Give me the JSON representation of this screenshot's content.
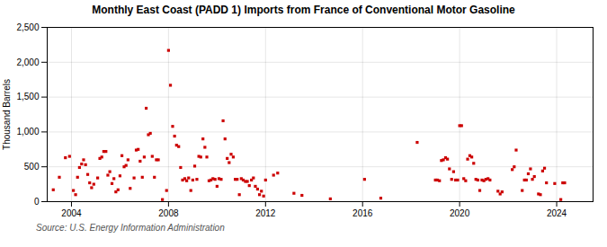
{
  "chart_data": {
    "type": "scatter",
    "title": "Monthly East Coast (PADD 1) Imports from France of Conventional Motor Gasoline",
    "ylabel": "Thousand Barrels",
    "annotations": [
      "Source: U.S. Energy Information Administration"
    ],
    "color": "#cc0000",
    "marker": "square",
    "grid": true,
    "xlim": [
      2003.0,
      2025.5
    ],
    "xticks": [
      2004,
      2008,
      2012,
      2016,
      2020,
      2024
    ],
    "ylim": [
      0,
      2500
    ],
    "yticks": [
      0,
      500,
      {
        "value": 1000,
        "label": "1,000"
      },
      {
        "value": 1500,
        "label": "1,500"
      },
      {
        "value": 2000,
        "label": "2,000"
      },
      {
        "value": 2500,
        "label": "2,500"
      }
    ],
    "x": [
      2003.25,
      2003.5,
      2003.75,
      2003.92,
      2004.08,
      2004.17,
      2004.25,
      2004.33,
      2004.42,
      2004.5,
      2004.58,
      2004.67,
      2004.75,
      2004.83,
      2004.92,
      2005.08,
      2005.17,
      2005.25,
      2005.33,
      2005.42,
      2005.5,
      2005.58,
      2005.67,
      2005.75,
      2005.83,
      2005.92,
      2006.0,
      2006.08,
      2006.17,
      2006.25,
      2006.33,
      2006.42,
      2006.58,
      2006.67,
      2006.75,
      2006.83,
      2006.92,
      2007.0,
      2007.08,
      2007.17,
      2007.25,
      2007.33,
      2007.42,
      2007.5,
      2007.58,
      2007.75,
      2007.92,
      2008.0,
      2008.08,
      2008.17,
      2008.25,
      2008.33,
      2008.42,
      2008.5,
      2008.58,
      2008.67,
      2008.75,
      2008.83,
      2008.92,
      2009.0,
      2009.08,
      2009.17,
      2009.25,
      2009.33,
      2009.42,
      2009.5,
      2009.58,
      2009.67,
      2009.75,
      2009.83,
      2009.92,
      2010.0,
      2010.08,
      2010.17,
      2010.25,
      2010.33,
      2010.42,
      2010.5,
      2010.58,
      2010.67,
      2010.75,
      2010.83,
      2010.92,
      2011.0,
      2011.08,
      2011.17,
      2011.25,
      2011.33,
      2011.42,
      2011.5,
      2011.58,
      2011.67,
      2011.75,
      2011.83,
      2011.92,
      2012.0,
      2012.33,
      2012.5,
      2013.17,
      2013.5,
      2014.67,
      2016.08,
      2016.75,
      2018.25,
      2019.0,
      2019.08,
      2019.17,
      2019.25,
      2019.33,
      2019.42,
      2019.5,
      2019.58,
      2019.67,
      2019.75,
      2019.83,
      2019.92,
      2020.0,
      2020.08,
      2020.17,
      2020.25,
      2020.33,
      2020.42,
      2020.5,
      2020.58,
      2020.67,
      2020.75,
      2020.83,
      2020.92,
      2021.0,
      2021.08,
      2021.17,
      2021.25,
      2021.58,
      2021.67,
      2021.75,
      2022.17,
      2022.25,
      2022.33,
      2022.58,
      2022.67,
      2022.75,
      2022.83,
      2022.92,
      2023.0,
      2023.08,
      2023.25,
      2023.33,
      2023.42,
      2023.5,
      2023.58,
      2023.92,
      2024.17,
      2024.25,
      2024.33
    ],
    "values": [
      170,
      350,
      630,
      650,
      160,
      100,
      350,
      490,
      540,
      600,
      530,
      390,
      270,
      200,
      250,
      340,
      620,
      640,
      720,
      720,
      380,
      430,
      260,
      330,
      140,
      170,
      370,
      660,
      500,
      520,
      600,
      190,
      340,
      740,
      750,
      580,
      350,
      640,
      1340,
      960,
      980,
      650,
      350,
      600,
      600,
      30,
      160,
      2170,
      1670,
      1080,
      940,
      810,
      790,
      490,
      310,
      330,
      300,
      340,
      160,
      310,
      510,
      320,
      650,
      640,
      900,
      780,
      640,
      300,
      310,
      330,
      320,
      220,
      330,
      320,
      1160,
      900,
      620,
      560,
      680,
      640,
      320,
      320,
      100,
      330,
      310,
      290,
      290,
      230,
      310,
      340,
      220,
      180,
      100,
      150,
      80,
      310,
      380,
      410,
      120,
      90,
      40,
      320,
      50,
      850,
      310,
      310,
      300,
      590,
      600,
      630,
      610,
      470,
      320,
      430,
      310,
      310,
      1090,
      1090,
      330,
      300,
      610,
      660,
      640,
      550,
      320,
      310,
      160,
      310,
      300,
      320,
      330,
      310,
      150,
      110,
      140,
      460,
      500,
      740,
      160,
      310,
      310,
      400,
      470,
      320,
      360,
      110,
      100,
      440,
      480,
      270,
      260,
      30,
      270,
      270
    ]
  }
}
